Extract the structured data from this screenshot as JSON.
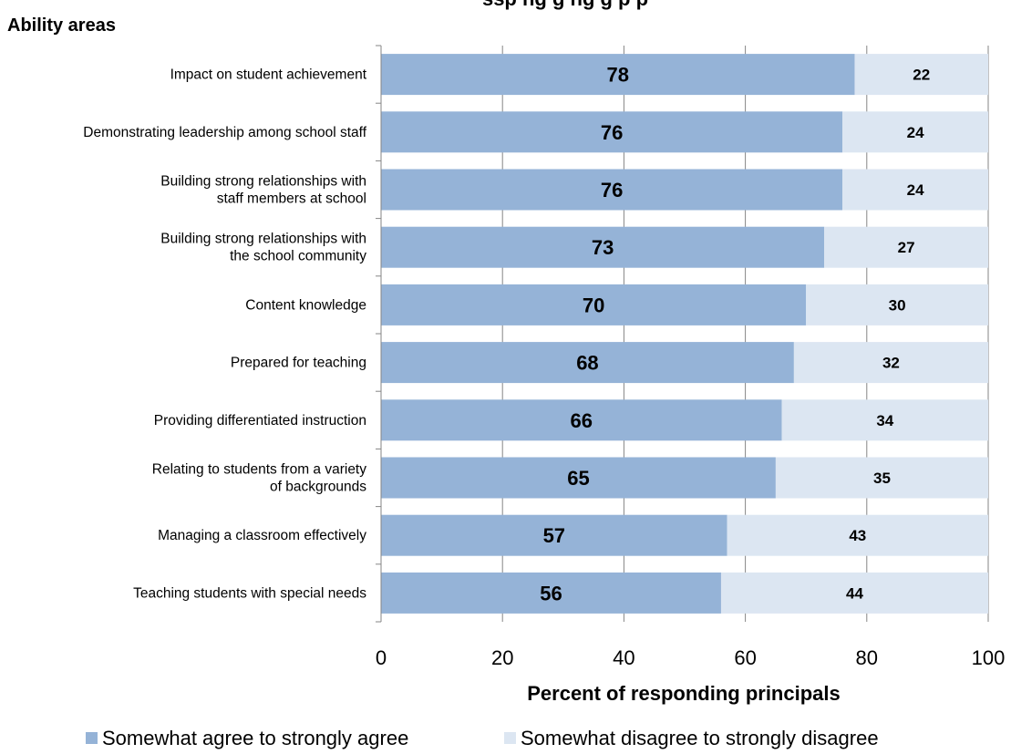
{
  "chart_data": {
    "type": "bar",
    "orientation": "horizontal",
    "stacked": true,
    "title_partial": "ssp   ng   g   ng g   p   p",
    "y_caption": "Ability areas",
    "xlabel": "Percent of responding principals",
    "xlim": [
      0,
      100
    ],
    "x_ticks": [
      "0",
      "20",
      "40",
      "60",
      "80",
      "100"
    ],
    "grid": "vertical",
    "legend_position": "bottom",
    "categories": [
      "Impact on student achievement",
      "Demonstrating leadership among school staff",
      "Building strong relationships with staff members at school",
      "Building strong relationships with the school community",
      "Content knowledge",
      "Prepared for teaching",
      "Providing differentiated instruction",
      "Relating to students from a variety of backgrounds",
      "Managing a classroom effectively",
      "Teaching students with special needs"
    ],
    "category_lines": [
      [
        "Impact on student achievement"
      ],
      [
        "Demonstrating leadership among school staff"
      ],
      [
        "Building strong relationships with",
        "staff members at school"
      ],
      [
        "Building strong relationships with",
        "the school community"
      ],
      [
        "Content knowledge"
      ],
      [
        "Prepared for teaching"
      ],
      [
        "Providing differentiated instruction"
      ],
      [
        "Relating to students from a variety",
        "of backgrounds"
      ],
      [
        "Managing a classroom effectively"
      ],
      [
        "Teaching students with special needs"
      ]
    ],
    "series": [
      {
        "name": "Somewhat agree to strongly agree",
        "color": "#95b3d7",
        "values": [
          78,
          76,
          76,
          73,
          70,
          68,
          66,
          65,
          57,
          56
        ]
      },
      {
        "name": "Somewhat disagree to strongly disagree",
        "color": "#dce6f2",
        "values": [
          22,
          24,
          24,
          27,
          30,
          32,
          34,
          35,
          43,
          44
        ]
      }
    ]
  }
}
